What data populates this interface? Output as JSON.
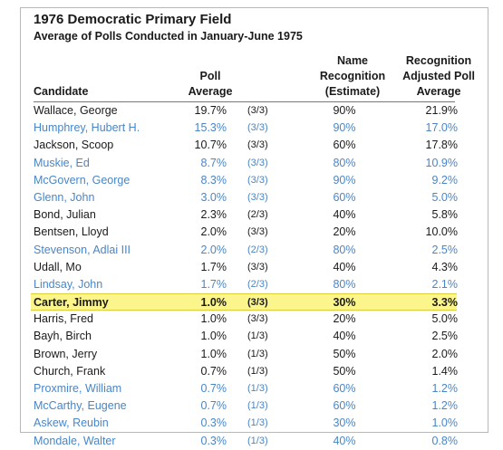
{
  "title": "1976 Democratic Primary Field",
  "subtitle": "Average of Polls Conducted in January-June 1975",
  "headers": {
    "candidate": "Candidate",
    "poll_line1": "Poll",
    "poll_line2": "Average",
    "name_line1": "Name",
    "name_line2": "Recognition",
    "name_line3": "(Estimate)",
    "adj_line1": "Recognition",
    "adj_line2": "Adjusted Poll",
    "adj_line3": "Average"
  },
  "colors": {
    "link_blue": "#4a86c5",
    "highlight": "#fbf58c"
  },
  "rows": [
    {
      "candidate": "Wallace, George",
      "poll": "19.7%",
      "count": "(3/3)",
      "recognition": "90%",
      "adjusted": "21.9%",
      "color": "black"
    },
    {
      "candidate": "Humphrey, Hubert H.",
      "poll": "15.3%",
      "count": "(3/3)",
      "recognition": "90%",
      "adjusted": "17.0%",
      "color": "blue"
    },
    {
      "candidate": "Jackson, Scoop",
      "poll": "10.7%",
      "count": "(3/3)",
      "recognition": "60%",
      "adjusted": "17.8%",
      "color": "black"
    },
    {
      "candidate": "Muskie, Ed",
      "poll": "8.7%",
      "count": "(3/3)",
      "recognition": "80%",
      "adjusted": "10.9%",
      "color": "blue"
    },
    {
      "candidate": "McGovern, George",
      "poll": "8.3%",
      "count": "(3/3)",
      "recognition": "90%",
      "adjusted": "9.2%",
      "color": "blue"
    },
    {
      "candidate": "Glenn, John",
      "poll": "3.0%",
      "count": "(3/3)",
      "recognition": "60%",
      "adjusted": "5.0%",
      "color": "blue"
    },
    {
      "candidate": "Bond, Julian",
      "poll": "2.3%",
      "count": "(2/3)",
      "recognition": "40%",
      "adjusted": "5.8%",
      "color": "black"
    },
    {
      "candidate": "Bentsen, Lloyd",
      "poll": "2.0%",
      "count": "(3/3)",
      "recognition": "20%",
      "adjusted": "10.0%",
      "color": "black"
    },
    {
      "candidate": "Stevenson, Adlai III",
      "poll": "2.0%",
      "count": "(2/3)",
      "recognition": "80%",
      "adjusted": "2.5%",
      "color": "blue"
    },
    {
      "candidate": "Udall, Mo",
      "poll": "1.7%",
      "count": "(3/3)",
      "recognition": "40%",
      "adjusted": "4.3%",
      "color": "black"
    },
    {
      "candidate": "Lindsay, John",
      "poll": "1.7%",
      "count": "(2/3)",
      "recognition": "80%",
      "adjusted": "2.1%",
      "color": "blue"
    },
    {
      "candidate": "Carter, Jimmy",
      "poll": "1.0%",
      "count": "(3/3)",
      "recognition": "30%",
      "adjusted": "3.3%",
      "color": "black",
      "highlight": true
    },
    {
      "candidate": "Harris, Fred",
      "poll": "1.0%",
      "count": "(3/3)",
      "recognition": "20%",
      "adjusted": "5.0%",
      "color": "black"
    },
    {
      "candidate": "Bayh, Birch",
      "poll": "1.0%",
      "count": "(1/3)",
      "recognition": "40%",
      "adjusted": "2.5%",
      "color": "black"
    },
    {
      "candidate": "Brown, Jerry",
      "poll": "1.0%",
      "count": "(1/3)",
      "recognition": "50%",
      "adjusted": "2.0%",
      "color": "black"
    },
    {
      "candidate": "Church, Frank",
      "poll": "0.7%",
      "count": "(1/3)",
      "recognition": "50%",
      "adjusted": "1.4%",
      "color": "black"
    },
    {
      "candidate": "Proxmire, William",
      "poll": "0.7%",
      "count": "(1/3)",
      "recognition": "60%",
      "adjusted": "1.2%",
      "color": "blue"
    },
    {
      "candidate": "McCarthy, Eugene",
      "poll": "0.7%",
      "count": "(1/3)",
      "recognition": "60%",
      "adjusted": "1.2%",
      "color": "blue"
    },
    {
      "candidate": "Askew, Reubin",
      "poll": "0.3%",
      "count": "(1/3)",
      "recognition": "30%",
      "adjusted": "1.0%",
      "color": "blue"
    },
    {
      "candidate": "Mondale, Walter",
      "poll": "0.3%",
      "count": "(1/3)",
      "recognition": "40%",
      "adjusted": "0.8%",
      "color": "blue"
    }
  ]
}
